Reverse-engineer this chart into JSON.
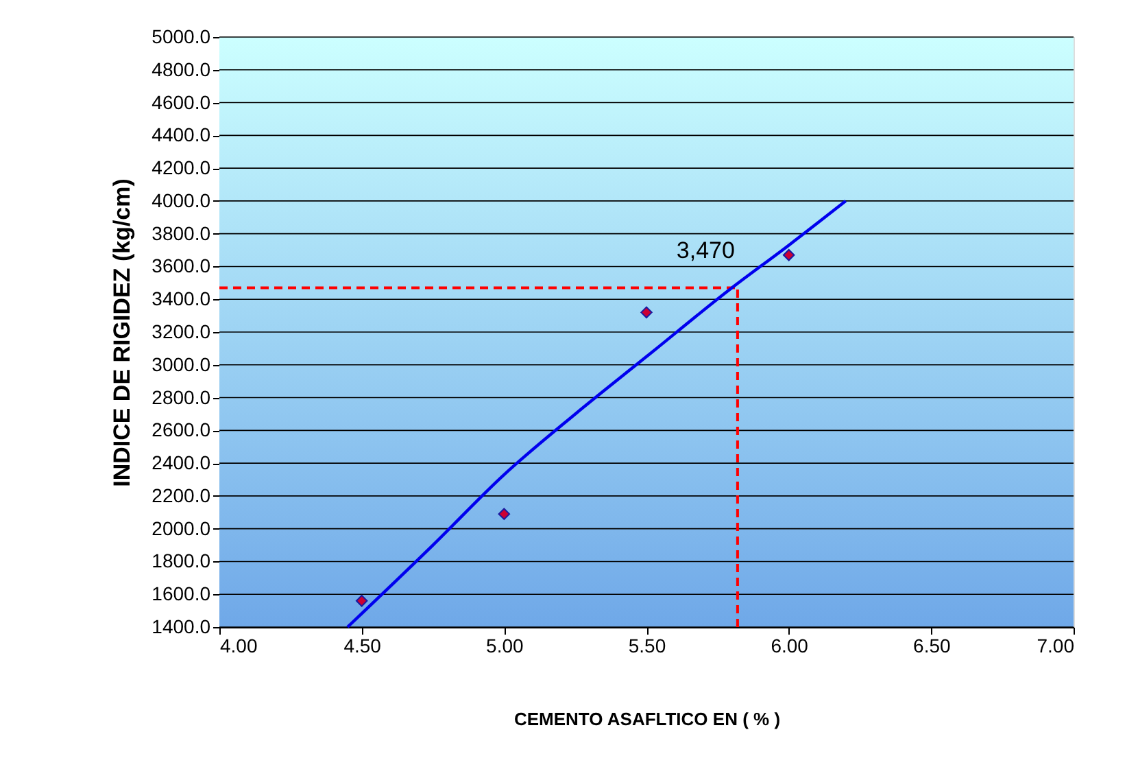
{
  "chart_data": {
    "type": "scatter",
    "xlabel": "CEMENTO ASAFLTICO EN ( % )",
    "ylabel": "INDICE DE RIGIDEZ (kg/cm)",
    "series": [
      {
        "type": "scatter",
        "color": "#cc0033",
        "marker": "diamond",
        "x": [
          4.5,
          5.0,
          5.5,
          6.0
        ],
        "values": [
          1560,
          2090,
          3320,
          3670
        ]
      },
      {
        "type": "line",
        "color": "#0000ee",
        "line_style": "solid",
        "x": [
          4.45,
          4.75,
          5.0,
          5.25,
          5.5,
          5.8,
          6.0,
          6.2
        ],
        "values": [
          1400,
          1900,
          2330,
          2700,
          3050,
          3470,
          3730,
          4000
        ]
      }
    ],
    "xlim": [
      4.0,
      7.0
    ],
    "xticks": [
      {
        "value": 4.0,
        "label": "4.00"
      },
      {
        "value": 4.5,
        "label": "4.50"
      },
      {
        "value": 5.0,
        "label": "5.00"
      },
      {
        "value": 5.5,
        "label": "5.50"
      },
      {
        "value": 6.0,
        "label": "6.00"
      },
      {
        "value": 6.5,
        "label": "6.50"
      },
      {
        "value": 7.0,
        "label": "7.00"
      }
    ],
    "ylim": [
      1400,
      5000
    ],
    "yticks": [
      {
        "value": 1400,
        "label": "1400.0"
      },
      {
        "value": 1600,
        "label": "1600.0"
      },
      {
        "value": 1800,
        "label": "1800.0"
      },
      {
        "value": 2000,
        "label": "2000.0"
      },
      {
        "value": 2200,
        "label": "2200.0"
      },
      {
        "value": 2400,
        "label": "2400.0"
      },
      {
        "value": 2600,
        "label": "2600.0"
      },
      {
        "value": 2800,
        "label": "2800.0"
      },
      {
        "value": 3000,
        "label": "3000.0"
      },
      {
        "value": 3200,
        "label": "3200.0"
      },
      {
        "value": 3400,
        "label": "3400.0"
      },
      {
        "value": 3600,
        "label": "3600.0"
      },
      {
        "value": 3800,
        "label": "3800.0"
      },
      {
        "value": 4000,
        "label": "4000.0"
      },
      {
        "value": 4200,
        "label": "4200.0"
      },
      {
        "value": 4400,
        "label": "4400.0"
      },
      {
        "value": 4600,
        "label": "4600.0"
      },
      {
        "value": 4800,
        "label": "4800.0"
      },
      {
        "value": 5000,
        "label": "5000.0"
      }
    ],
    "grid": "y",
    "ref_lines": [
      {
        "axis": "y",
        "value": 3470,
        "color": "#ff0000",
        "line_style": "dashed"
      },
      {
        "axis": "x",
        "value": 5.82,
        "color": "#ff0000",
        "line_style": "dashed"
      }
    ],
    "annotations": [
      {
        "text": "3,470",
        "x": 5.82,
        "y": 3470
      }
    ]
  }
}
